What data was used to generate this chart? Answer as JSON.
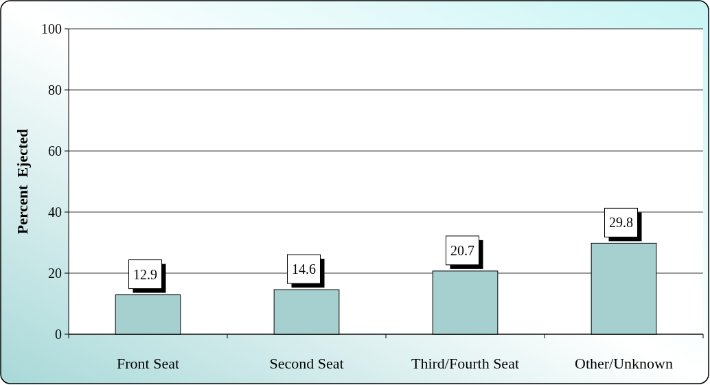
{
  "chart_data": {
    "type": "bar",
    "ylabel": "Percent  Ejected",
    "categories": [
      "Front Seat",
      "Second Seat",
      "Third/Fourth Seat",
      "Other/Unknown"
    ],
    "values": [
      12.9,
      14.6,
      20.7,
      29.8
    ],
    "color": "#a6cfcf",
    "ylim": [
      0,
      100
    ],
    "yticks": [
      0,
      20,
      40,
      60,
      80,
      100
    ],
    "grid": "y",
    "data_labels": true
  }
}
